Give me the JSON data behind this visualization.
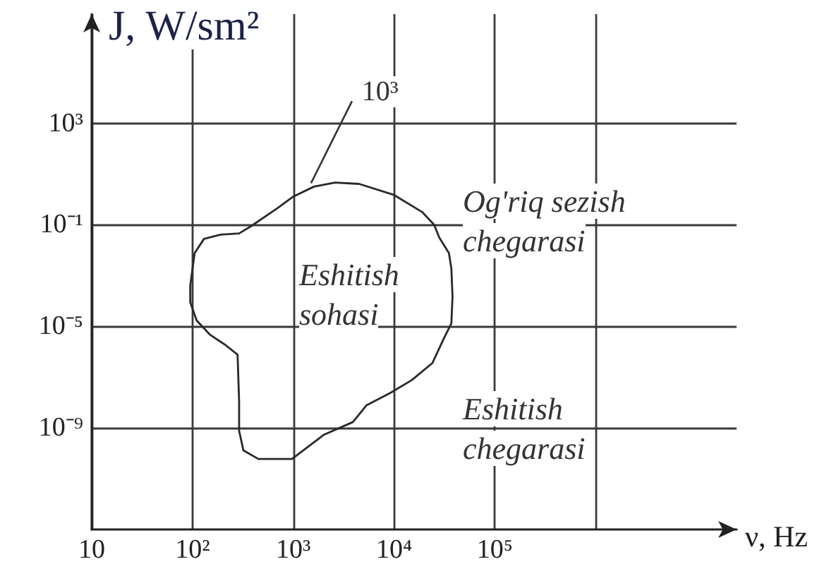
{
  "chart_data": {
    "type": "line",
    "xlabel": "ν, Hz",
    "ylabel": "J, W/sm²",
    "annotations": [
      {
        "text": "10³",
        "x": 1500,
        "y": 3
      },
      "Og'riq sezish\nchegarasi",
      "Eshitish\nsohasi",
      "Eshitish\nchegarasi"
    ],
    "x": [
      95,
      105,
      130,
      190,
      290,
      380,
      700,
      1000,
      1600,
      2600,
      4500,
      10000,
      19000,
      25000,
      28000,
      35000,
      37000,
      38000,
      37000,
      31000,
      24000,
      15000,
      9200,
      5300,
      3900,
      2000,
      970,
      450,
      320,
      290,
      290,
      280,
      210,
      150,
      110,
      95,
      95,
      105
    ],
    "values": [
      0.00041,
      0.0077,
      0.028,
      0.041,
      0.046,
      0.088,
      0.46,
      1.3,
      3.2,
      4.6,
      4.1,
      1.5,
      0.32,
      0.1,
      0.032,
      0.0077,
      0.0019,
      0.00015,
      1.3e-05,
      3.2e-06,
      3.6e-07,
      7.7e-08,
      2.4e-08,
      7.7e-09,
      1.7e-09,
      5.3e-10,
      6e-11,
      6e-11,
      1.3e-10,
      7.7e-10,
      1.1e-08,
      7.7e-07,
      1.9e-06,
      4.6e-06,
      1.7e-05,
      8.8e-05,
      0.00041,
      0.0077
    ],
    "color": "#2a2a2a",
    "marker": "none",
    "line_style": "solid",
    "log": "xy",
    "xlim": [
      10,
      25000000
    ],
    "ylim": [
      1e-13,
      20000000
    ],
    "xticks": [
      10,
      {
        "value": 100,
        "label": "10²"
      },
      {
        "value": 1000,
        "label": "10³"
      },
      {
        "value": 10000,
        "label": "10⁴"
      },
      {
        "value": 100000,
        "label": "10⁵"
      },
      {
        "value": 1000000,
        "label": null
      }
    ],
    "yticks": [
      {
        "value": 1e-09,
        "label": "10⁻⁹"
      },
      {
        "value": 1e-05,
        "label": "10⁻⁵"
      },
      {
        "value": 0.1,
        "label": "10⁻¹"
      },
      {
        "value": 1000,
        "label": "10³"
      }
    ],
    "grid": true
  }
}
